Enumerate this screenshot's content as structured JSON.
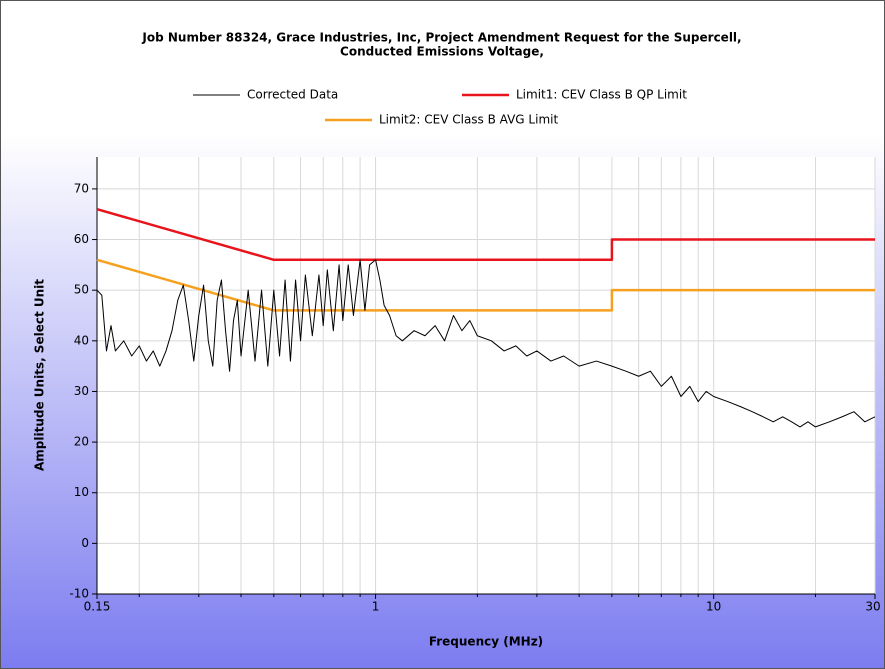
{
  "chart_data": {
    "type": "line",
    "title": [
      "Job Number 88324, Grace Industries, Inc, Project Amendment Request for the Supercell,",
      "Conducted Emissions Voltage,"
    ],
    "x_label": "Frequency (MHz)",
    "y_label": "Amplitude Units, Select Unit",
    "x_log": true,
    "grid": true,
    "xlim": [
      0.15,
      30
    ],
    "ylim": [
      -10,
      76.3
    ],
    "xticks": [
      0.15,
      1,
      10,
      30
    ],
    "xminorticks": [
      0.2,
      0.3,
      0.4,
      0.5,
      0.6,
      0.7,
      0.8,
      0.9,
      2,
      3,
      4,
      5,
      6,
      7,
      8,
      9,
      20
    ],
    "yticks": [
      -10,
      0,
      10,
      20,
      30,
      40,
      50,
      60,
      70
    ],
    "series": [
      {
        "name": "Corrected Data",
        "color": "#000000",
        "x": [
          0.15,
          0.155,
          0.16,
          0.165,
          0.17,
          0.18,
          0.19,
          0.2,
          0.21,
          0.22,
          0.23,
          0.24,
          0.25,
          0.26,
          0.27,
          0.28,
          0.29,
          0.3,
          0.31,
          0.32,
          0.33,
          0.34,
          0.35,
          0.36,
          0.37,
          0.38,
          0.39,
          0.4,
          0.42,
          0.44,
          0.46,
          0.48,
          0.5,
          0.52,
          0.54,
          0.56,
          0.58,
          0.6,
          0.62,
          0.65,
          0.68,
          0.7,
          0.72,
          0.75,
          0.78,
          0.8,
          0.83,
          0.86,
          0.9,
          0.93,
          0.96,
          1.0,
          1.03,
          1.06,
          1.1,
          1.15,
          1.2,
          1.3,
          1.4,
          1.5,
          1.6,
          1.7,
          1.8,
          1.9,
          2.0,
          2.2,
          2.4,
          2.6,
          2.8,
          3.0,
          3.3,
          3.6,
          4.0,
          4.5,
          5.0,
          5.5,
          6.0,
          6.5,
          7.0,
          7.5,
          8.0,
          8.5,
          9.0,
          9.5,
          10,
          11,
          12,
          13,
          14,
          15,
          16,
          17,
          18,
          19,
          20,
          22,
          24,
          26,
          28,
          30
        ],
        "values": [
          50,
          49,
          38,
          43,
          38,
          40,
          37,
          39,
          36,
          38,
          35,
          38,
          42,
          48,
          51,
          44,
          36,
          45,
          51,
          40,
          35,
          48,
          52,
          42,
          34,
          44,
          48,
          37,
          50,
          36,
          50,
          35,
          50,
          37,
          52,
          36,
          52,
          40,
          53,
          41,
          53,
          43,
          54,
          42,
          55,
          44,
          55,
          45,
          56,
          46,
          55,
          56,
          52,
          47,
          45,
          41,
          40,
          42,
          41,
          43,
          40,
          45,
          42,
          44,
          41,
          40,
          38,
          39,
          37,
          38,
          36,
          37,
          35,
          36,
          35,
          34,
          33,
          34,
          31,
          33,
          29,
          31,
          28,
          30,
          29,
          28,
          27,
          26,
          25,
          24,
          25,
          24,
          23,
          24,
          23,
          24,
          25,
          26,
          24,
          25
        ]
      },
      {
        "name": "Limit1: CEV Class B QP Limit",
        "color": "#e8141c",
        "x": [
          0.15,
          0.5,
          5,
          5,
          30
        ],
        "values": [
          66,
          56,
          56,
          60,
          60
        ]
      },
      {
        "name": "Limit2: CEV Class B AVG Limit",
        "color": "#f5a01e",
        "x": [
          0.15,
          0.5,
          5,
          5,
          30
        ],
        "values": [
          56,
          46,
          46,
          50,
          50
        ]
      }
    ]
  }
}
